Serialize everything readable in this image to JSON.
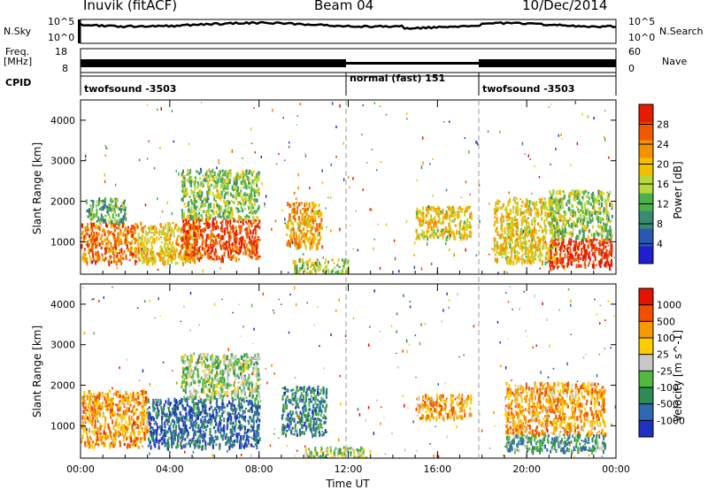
{
  "header": {
    "station": "Inuvik (fitACF)",
    "beam": "Beam 04",
    "date": "10/Dec/2014"
  },
  "panels": {
    "nsky": {
      "label": "N.Sky",
      "right_label": "N.Search",
      "left_ticks": [
        "10^5",
        "10^0"
      ],
      "right_ticks": [
        "10^5",
        "10^0"
      ]
    },
    "freq": {
      "label_line1": "Freq.",
      "label_line2": "[MHz]",
      "right_label": "Nave",
      "left_ticks": [
        "18",
        "8"
      ],
      "right_ticks": [
        "60",
        "0"
      ]
    },
    "cpid": {
      "label": "CPID",
      "segments": [
        {
          "name": "twofsound -3503",
          "start_h": 0,
          "end_h": 12
        },
        {
          "name": "normal (fast) 151",
          "start_h": 12,
          "end_h": 18
        },
        {
          "name": "twofsound -3503",
          "start_h": 18,
          "end_h": 24
        }
      ]
    }
  },
  "colors": {
    "power": [
      "#1f1fd0",
      "#2a58b0",
      "#3a8a70",
      "#4bb04b",
      "#b8d83a",
      "#f0c000",
      "#f39200",
      "#ef5a00",
      "#e61c00"
    ],
    "velocity": [
      "#2030c0",
      "#2f6ab0",
      "#2f8a55",
      "#52b840",
      "#c8c8c8",
      "#ffcc00",
      "#f59a00",
      "#ef5000",
      "#e51400"
    ]
  },
  "chart_data": [
    {
      "type": "heatmap",
      "title": "",
      "xlabel": "Time UT",
      "ylabel": "Slant Range [km]",
      "xlim": [
        0,
        24
      ],
      "ylim": [
        200,
        4500
      ],
      "x_ticks": [
        "00:00",
        "04:00",
        "08:00",
        "12:00",
        "16:00",
        "20:00",
        "00:00"
      ],
      "x_tick_values": [
        0,
        4,
        8,
        12,
        16,
        20,
        24
      ],
      "y_ticks": [
        1000,
        2000,
        3000,
        4000
      ],
      "colorbar": {
        "label": "Power [dB]",
        "ticks": [
          "28",
          "24",
          "20",
          "16",
          "12",
          "8",
          "4"
        ],
        "range": [
          0,
          30
        ]
      },
      "regions": [
        {
          "t": [
            0.0,
            2.5
          ],
          "r": [
            500,
            1500
          ],
          "level": 0.78
        },
        {
          "t": [
            0.2,
            2.0
          ],
          "r": [
            1500,
            2100
          ],
          "level": 0.35
        },
        {
          "t": [
            2.5,
            5.2
          ],
          "r": [
            500,
            1500
          ],
          "level": 0.62
        },
        {
          "t": [
            4.5,
            8.0
          ],
          "r": [
            600,
            1600
          ],
          "level": 0.88
        },
        {
          "t": [
            4.5,
            8.0
          ],
          "r": [
            1600,
            2800
          ],
          "level": 0.45
        },
        {
          "t": [
            9.2,
            10.8
          ],
          "r": [
            900,
            2000
          ],
          "level": 0.7
        },
        {
          "t": [
            9.5,
            12.0
          ],
          "r": [
            200,
            600
          ],
          "level": 0.5
        },
        {
          "t": [
            15.0,
            17.5
          ],
          "r": [
            1100,
            1900
          ],
          "level": 0.6
        },
        {
          "t": [
            18.5,
            21.5
          ],
          "r": [
            500,
            2100
          ],
          "level": 0.6
        },
        {
          "t": [
            21.0,
            23.8
          ],
          "r": [
            400,
            1100
          ],
          "level": 0.95
        },
        {
          "t": [
            21.0,
            23.8
          ],
          "r": [
            1100,
            2300
          ],
          "level": 0.45
        }
      ]
    },
    {
      "type": "heatmap",
      "title": "",
      "xlabel": "Time UT",
      "ylabel": "Slant Range [km]",
      "xlim": [
        0,
        24
      ],
      "ylim": [
        200,
        4500
      ],
      "x_ticks": [
        "00:00",
        "04:00",
        "08:00",
        "12:00",
        "16:00",
        "20:00",
        "00:00"
      ],
      "x_tick_values": [
        0,
        4,
        8,
        12,
        16,
        20,
        24
      ],
      "y_ticks": [
        1000,
        2000,
        3000,
        4000
      ],
      "colorbar": {
        "label": "Velocity [m s^-1]",
        "ticks": [
          "1000",
          "500",
          "100",
          "25",
          "-25",
          "-100",
          "-500",
          "-1000"
        ],
        "range": [
          -1000,
          1000
        ]
      },
      "regions": [
        {
          "t": [
            0.0,
            3.0
          ],
          "r": [
            500,
            1900
          ],
          "level": 0.72
        },
        {
          "t": [
            3.0,
            8.0
          ],
          "r": [
            500,
            1700
          ],
          "level": 0.18
        },
        {
          "t": [
            4.5,
            8.0
          ],
          "r": [
            1700,
            2800
          ],
          "level": 0.45
        },
        {
          "t": [
            9.0,
            11.0
          ],
          "r": [
            800,
            2000
          ],
          "level": 0.25
        },
        {
          "t": [
            10.0,
            13.0
          ],
          "r": [
            200,
            500
          ],
          "level": 0.45
        },
        {
          "t": [
            15.0,
            17.5
          ],
          "r": [
            1200,
            1800
          ],
          "level": 0.7
        },
        {
          "t": [
            19.0,
            23.5
          ],
          "r": [
            800,
            2100
          ],
          "level": 0.7
        },
        {
          "t": [
            19.0,
            23.5
          ],
          "r": [
            400,
            800
          ],
          "level": 0.3
        }
      ]
    }
  ]
}
